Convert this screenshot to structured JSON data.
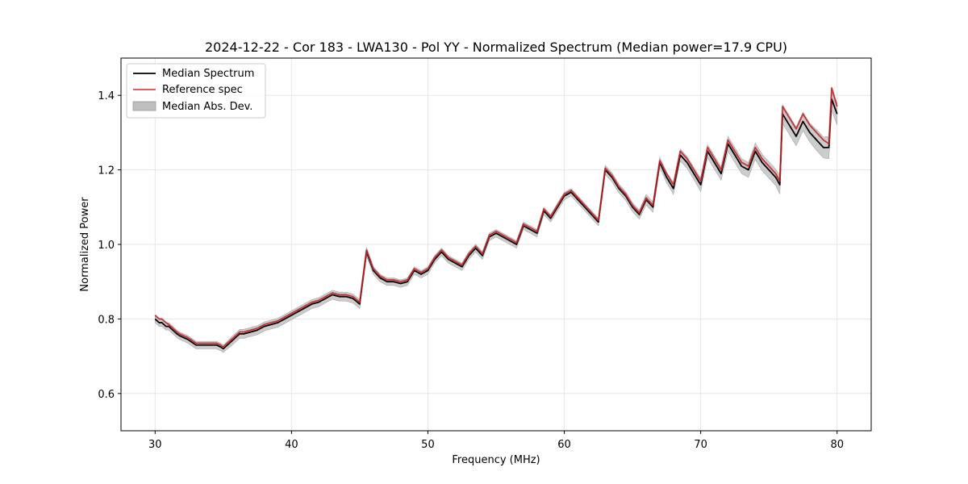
{
  "chart_data": {
    "type": "line",
    "title": "2024-12-22 - Cor 183 - LWA130 - Pol YY - Normalized Spectrum (Median power=17.9 CPU)",
    "xlabel": "Frequency (MHz)",
    "ylabel": "Normalized Power",
    "xlim": [
      27.5,
      82.5
    ],
    "ylim": [
      0.5,
      1.5
    ],
    "xticks": [
      30,
      40,
      50,
      60,
      70,
      80
    ],
    "yticks": [
      0.6,
      0.8,
      1.0,
      1.2,
      1.4
    ],
    "xtick_labels": [
      "30",
      "40",
      "50",
      "60",
      "70",
      "80"
    ],
    "ytick_labels": [
      "0.6",
      "0.8",
      "1.0",
      "1.2",
      "1.4"
    ],
    "grid": true,
    "legend_position": "top-left",
    "legend": [
      "Median Spectrum",
      "Reference spec",
      "Median Abs. Dev."
    ],
    "colors": {
      "median": "#000000",
      "reference": "#e0454a",
      "reference_dark": "#8b0000",
      "mad": "#bfbfbf"
    },
    "series": [
      {
        "name": "Median Spectrum",
        "x": [
          30.0,
          30.3,
          30.5,
          30.8,
          31.0,
          31.3,
          31.6,
          31.8,
          32.1,
          32.4,
          32.6,
          33.0,
          33.5,
          34.0,
          34.5,
          34.8,
          35.0,
          35.3,
          35.6,
          35.9,
          36.2,
          36.5,
          37.0,
          37.5,
          38.0,
          38.5,
          39.0,
          39.5,
          40.0,
          40.5,
          41.0,
          41.5,
          42.0,
          42.5,
          43.0,
          43.5,
          44.0,
          44.5,
          45.0,
          45.5,
          46.0,
          46.5,
          47.0,
          47.5,
          48.0,
          48.5,
          49.0,
          49.5,
          50.0,
          50.5,
          51.0,
          51.5,
          52.0,
          52.5,
          53.0,
          53.5,
          54.0,
          54.5,
          55.0,
          55.5,
          56.0,
          56.5,
          57.0,
          57.5,
          58.0,
          58.5,
          59.0,
          59.5,
          60.0,
          60.5,
          61.0,
          61.5,
          62.0,
          62.5,
          63.0,
          63.5,
          64.0,
          64.5,
          65.0,
          65.5,
          66.0,
          66.5,
          67.0,
          67.5,
          68.0,
          68.5,
          69.0,
          69.5,
          70.0,
          70.5,
          71.0,
          71.5,
          72.0,
          72.5,
          73.0,
          73.5,
          74.0,
          74.5,
          75.0,
          75.5,
          75.8,
          76.0,
          76.5,
          77.0,
          77.5,
          78.0,
          78.5,
          79.0,
          79.4,
          79.6,
          80.0
        ],
        "values": [
          0.8,
          0.79,
          0.79,
          0.78,
          0.78,
          0.77,
          0.76,
          0.755,
          0.75,
          0.745,
          0.74,
          0.73,
          0.73,
          0.73,
          0.73,
          0.725,
          0.72,
          0.73,
          0.74,
          0.75,
          0.76,
          0.76,
          0.765,
          0.77,
          0.78,
          0.785,
          0.79,
          0.8,
          0.81,
          0.82,
          0.83,
          0.84,
          0.845,
          0.855,
          0.865,
          0.86,
          0.86,
          0.855,
          0.84,
          0.98,
          0.93,
          0.91,
          0.9,
          0.9,
          0.895,
          0.9,
          0.93,
          0.92,
          0.93,
          0.96,
          0.98,
          0.96,
          0.95,
          0.94,
          0.97,
          0.99,
          0.97,
          1.02,
          1.03,
          1.02,
          1.01,
          1.0,
          1.05,
          1.04,
          1.03,
          1.09,
          1.07,
          1.1,
          1.13,
          1.14,
          1.12,
          1.1,
          1.08,
          1.06,
          1.2,
          1.18,
          1.15,
          1.13,
          1.1,
          1.08,
          1.12,
          1.1,
          1.22,
          1.18,
          1.15,
          1.24,
          1.22,
          1.19,
          1.16,
          1.25,
          1.22,
          1.19,
          1.27,
          1.24,
          1.21,
          1.2,
          1.25,
          1.22,
          1.2,
          1.18,
          1.16,
          1.35,
          1.32,
          1.29,
          1.33,
          1.3,
          1.28,
          1.26,
          1.26,
          1.39,
          1.35
        ],
        "color": "#000000"
      },
      {
        "name": "Reference spec",
        "x": [
          30.0,
          30.3,
          30.5,
          30.8,
          31.0,
          31.3,
          31.6,
          31.8,
          32.1,
          32.4,
          32.6,
          33.0,
          33.5,
          34.0,
          34.5,
          34.8,
          35.0,
          35.3,
          35.6,
          35.9,
          36.2,
          36.5,
          37.0,
          37.5,
          38.0,
          38.5,
          39.0,
          39.5,
          40.0,
          40.5,
          41.0,
          41.5,
          42.0,
          42.5,
          43.0,
          43.5,
          44.0,
          44.5,
          45.0,
          45.5,
          46.0,
          46.5,
          47.0,
          47.5,
          48.0,
          48.5,
          49.0,
          49.5,
          50.0,
          50.5,
          51.0,
          51.5,
          52.0,
          52.5,
          53.0,
          53.5,
          54.0,
          54.5,
          55.0,
          55.5,
          56.0,
          56.5,
          57.0,
          57.5,
          58.0,
          58.5,
          59.0,
          59.5,
          60.0,
          60.5,
          61.0,
          61.5,
          62.0,
          62.5,
          63.0,
          63.5,
          64.0,
          64.5,
          65.0,
          65.5,
          66.0,
          66.5,
          67.0,
          67.5,
          68.0,
          68.5,
          69.0,
          69.5,
          70.0,
          70.5,
          71.0,
          71.5,
          72.0,
          72.5,
          73.0,
          73.5,
          74.0,
          74.5,
          75.0,
          75.5,
          75.8,
          76.0,
          76.5,
          77.0,
          77.5,
          78.0,
          78.5,
          79.0,
          79.4,
          79.6,
          80.0
        ],
        "values": [
          0.81,
          0.8,
          0.8,
          0.79,
          0.785,
          0.775,
          0.765,
          0.76,
          0.755,
          0.75,
          0.745,
          0.735,
          0.735,
          0.735,
          0.735,
          0.73,
          0.725,
          0.735,
          0.745,
          0.755,
          0.765,
          0.765,
          0.77,
          0.775,
          0.785,
          0.79,
          0.795,
          0.805,
          0.815,
          0.825,
          0.835,
          0.845,
          0.85,
          0.86,
          0.87,
          0.865,
          0.865,
          0.86,
          0.845,
          0.985,
          0.935,
          0.915,
          0.905,
          0.905,
          0.9,
          0.905,
          0.935,
          0.925,
          0.935,
          0.965,
          0.985,
          0.965,
          0.955,
          0.945,
          0.975,
          0.995,
          0.975,
          1.025,
          1.035,
          1.025,
          1.015,
          1.005,
          1.055,
          1.045,
          1.035,
          1.095,
          1.075,
          1.105,
          1.135,
          1.145,
          1.125,
          1.105,
          1.085,
          1.065,
          1.205,
          1.185,
          1.155,
          1.135,
          1.105,
          1.085,
          1.125,
          1.105,
          1.225,
          1.19,
          1.16,
          1.25,
          1.23,
          1.2,
          1.17,
          1.26,
          1.23,
          1.2,
          1.28,
          1.25,
          1.22,
          1.21,
          1.26,
          1.23,
          1.21,
          1.19,
          1.17,
          1.37,
          1.34,
          1.31,
          1.35,
          1.32,
          1.3,
          1.28,
          1.27,
          1.42,
          1.37
        ],
        "color": "#e0454a"
      }
    ],
    "mad_halfwidth": [
      0.01,
      0.01,
      0.01,
      0.01,
      0.01,
      0.01,
      0.01,
      0.01,
      0.01,
      0.01,
      0.01,
      0.01,
      0.01,
      0.01,
      0.01,
      0.01,
      0.01,
      0.01,
      0.012,
      0.012,
      0.012,
      0.012,
      0.012,
      0.012,
      0.012,
      0.012,
      0.012,
      0.012,
      0.012,
      0.012,
      0.012,
      0.012,
      0.012,
      0.012,
      0.012,
      0.012,
      0.012,
      0.012,
      0.012,
      0.012,
      0.01,
      0.01,
      0.01,
      0.01,
      0.01,
      0.01,
      0.01,
      0.01,
      0.01,
      0.01,
      0.01,
      0.01,
      0.01,
      0.01,
      0.01,
      0.01,
      0.01,
      0.01,
      0.01,
      0.01,
      0.01,
      0.01,
      0.01,
      0.01,
      0.01,
      0.01,
      0.01,
      0.01,
      0.01,
      0.01,
      0.01,
      0.01,
      0.01,
      0.01,
      0.012,
      0.012,
      0.012,
      0.012,
      0.012,
      0.012,
      0.014,
      0.014,
      0.014,
      0.014,
      0.016,
      0.016,
      0.016,
      0.016,
      0.018,
      0.018,
      0.018,
      0.018,
      0.02,
      0.02,
      0.02,
      0.02,
      0.022,
      0.022,
      0.022,
      0.022,
      0.025,
      0.025,
      0.025,
      0.025,
      0.025,
      0.025,
      0.028,
      0.028,
      0.03,
      0.03,
      0.03
    ]
  }
}
